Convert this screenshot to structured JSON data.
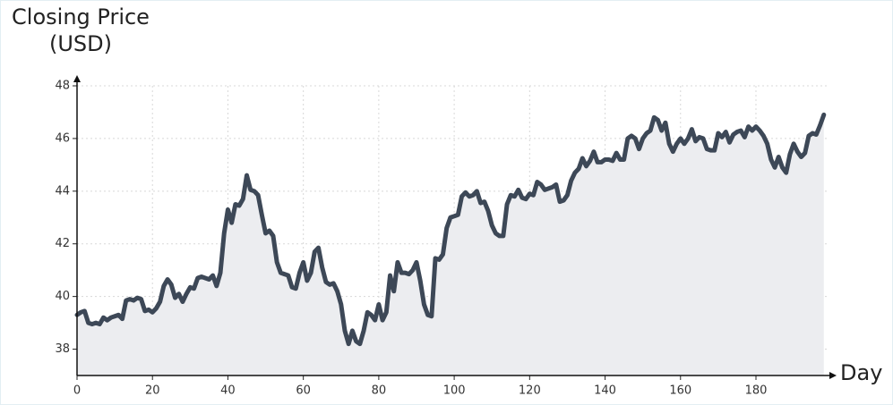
{
  "chart_data": {
    "type": "line",
    "y_label": [
      "Closing Price",
      "(USD)"
    ],
    "x_label": "Day",
    "x": [
      0,
      1,
      2,
      3,
      4,
      5,
      6,
      7,
      8,
      9,
      10,
      11,
      12,
      13,
      14,
      15,
      16,
      17,
      18,
      19,
      20,
      21,
      22,
      23,
      24,
      25,
      26,
      27,
      28,
      29,
      30,
      31,
      32,
      33,
      34,
      35,
      36,
      37,
      38,
      39,
      40,
      41,
      42,
      43,
      44,
      45,
      46,
      47,
      48,
      49,
      50,
      51,
      52,
      53,
      54,
      55,
      56,
      57,
      58,
      59,
      60,
      61,
      62,
      63,
      64,
      65,
      66,
      67,
      68,
      69,
      70,
      71,
      72,
      73,
      74,
      75,
      76,
      77,
      78,
      79,
      80,
      81,
      82,
      83,
      84,
      85,
      86,
      87,
      88,
      89,
      90,
      91,
      92,
      93,
      94,
      95,
      96,
      97,
      98,
      99,
      100,
      101,
      102,
      103,
      104,
      105,
      106,
      107,
      108,
      109,
      110,
      111,
      112,
      113,
      114,
      115,
      116,
      117,
      118,
      119,
      120,
      121,
      122,
      123,
      124,
      125,
      126,
      127,
      128,
      129,
      130,
      131,
      132,
      133,
      134,
      135,
      136,
      137,
      138,
      139,
      140,
      141,
      142,
      143,
      144,
      145,
      146,
      147,
      148,
      149,
      150,
      151,
      152,
      153,
      154,
      155,
      156,
      157,
      158,
      159,
      160,
      161,
      162,
      163,
      164,
      165,
      166,
      167,
      168,
      169,
      170,
      171,
      172,
      173,
      174,
      175,
      176,
      177,
      178,
      179,
      180,
      181,
      182,
      183,
      184,
      185,
      186,
      187,
      188,
      189,
      190,
      191,
      192,
      193,
      194,
      195,
      196,
      197,
      198
    ],
    "series": [
      {
        "name": "Closing Price",
        "color": "#3d4857",
        "area_color": "#ecedf0",
        "values": [
          39.3,
          39.4,
          39.45,
          39.0,
          38.95,
          39.0,
          38.95,
          39.2,
          39.1,
          39.2,
          39.25,
          39.3,
          39.15,
          39.85,
          39.9,
          39.85,
          39.95,
          39.9,
          39.45,
          39.5,
          39.4,
          39.55,
          39.8,
          40.4,
          40.65,
          40.45,
          39.95,
          40.1,
          39.8,
          40.1,
          40.35,
          40.3,
          40.7,
          40.75,
          40.7,
          40.65,
          40.8,
          40.4,
          40.9,
          42.4,
          43.3,
          42.8,
          43.5,
          43.45,
          43.7,
          44.6,
          44.05,
          44.0,
          43.85,
          43.1,
          42.4,
          42.5,
          42.3,
          41.3,
          40.9,
          40.85,
          40.8,
          40.35,
          40.3,
          40.9,
          41.3,
          40.6,
          40.9,
          41.7,
          41.85,
          41.1,
          40.55,
          40.45,
          40.5,
          40.2,
          39.7,
          38.7,
          38.2,
          38.7,
          38.3,
          38.2,
          38.7,
          39.4,
          39.3,
          39.1,
          39.7,
          39.1,
          39.4,
          40.8,
          40.2,
          41.3,
          40.9,
          40.9,
          40.85,
          41.0,
          41.3,
          40.6,
          39.7,
          39.3,
          39.25,
          41.45,
          41.4,
          41.6,
          42.6,
          43.0,
          43.05,
          43.1,
          43.8,
          43.95,
          43.8,
          43.85,
          44.0,
          43.55,
          43.6,
          43.25,
          42.7,
          42.4,
          42.3,
          42.3,
          43.5,
          43.85,
          43.8,
          44.05,
          43.75,
          43.7,
          43.9,
          43.85,
          44.35,
          44.25,
          44.05,
          44.1,
          44.15,
          44.25,
          43.6,
          43.65,
          43.85,
          44.4,
          44.7,
          44.85,
          45.25,
          44.95,
          45.15,
          45.5,
          45.1,
          45.1,
          45.2,
          45.2,
          45.15,
          45.45,
          45.2,
          45.2,
          46.0,
          46.1,
          46.0,
          45.6,
          46.0,
          46.2,
          46.3,
          46.8,
          46.7,
          46.3,
          46.6,
          45.8,
          45.5,
          45.8,
          46.0,
          45.8,
          46.0,
          46.35,
          45.9,
          46.05,
          46.0,
          45.6,
          45.55,
          45.55,
          46.2,
          46.05,
          46.25,
          45.85,
          46.15,
          46.25,
          46.3,
          46.05,
          46.45,
          46.3,
          46.45,
          46.3,
          46.1,
          45.8,
          45.2,
          44.9,
          45.3,
          44.9,
          44.7,
          45.4,
          45.8,
          45.5,
          45.3,
          45.45,
          46.1,
          46.2,
          46.15,
          46.5,
          46.9
        ]
      }
    ],
    "xlim": [
      0,
      199
    ],
    "ylim": [
      37,
      48
    ],
    "xticks": [
      0,
      20,
      40,
      60,
      80,
      100,
      120,
      140,
      160,
      180
    ],
    "yticks": [
      38,
      40,
      42,
      44,
      46,
      48
    ],
    "grid": true,
    "area": true
  }
}
